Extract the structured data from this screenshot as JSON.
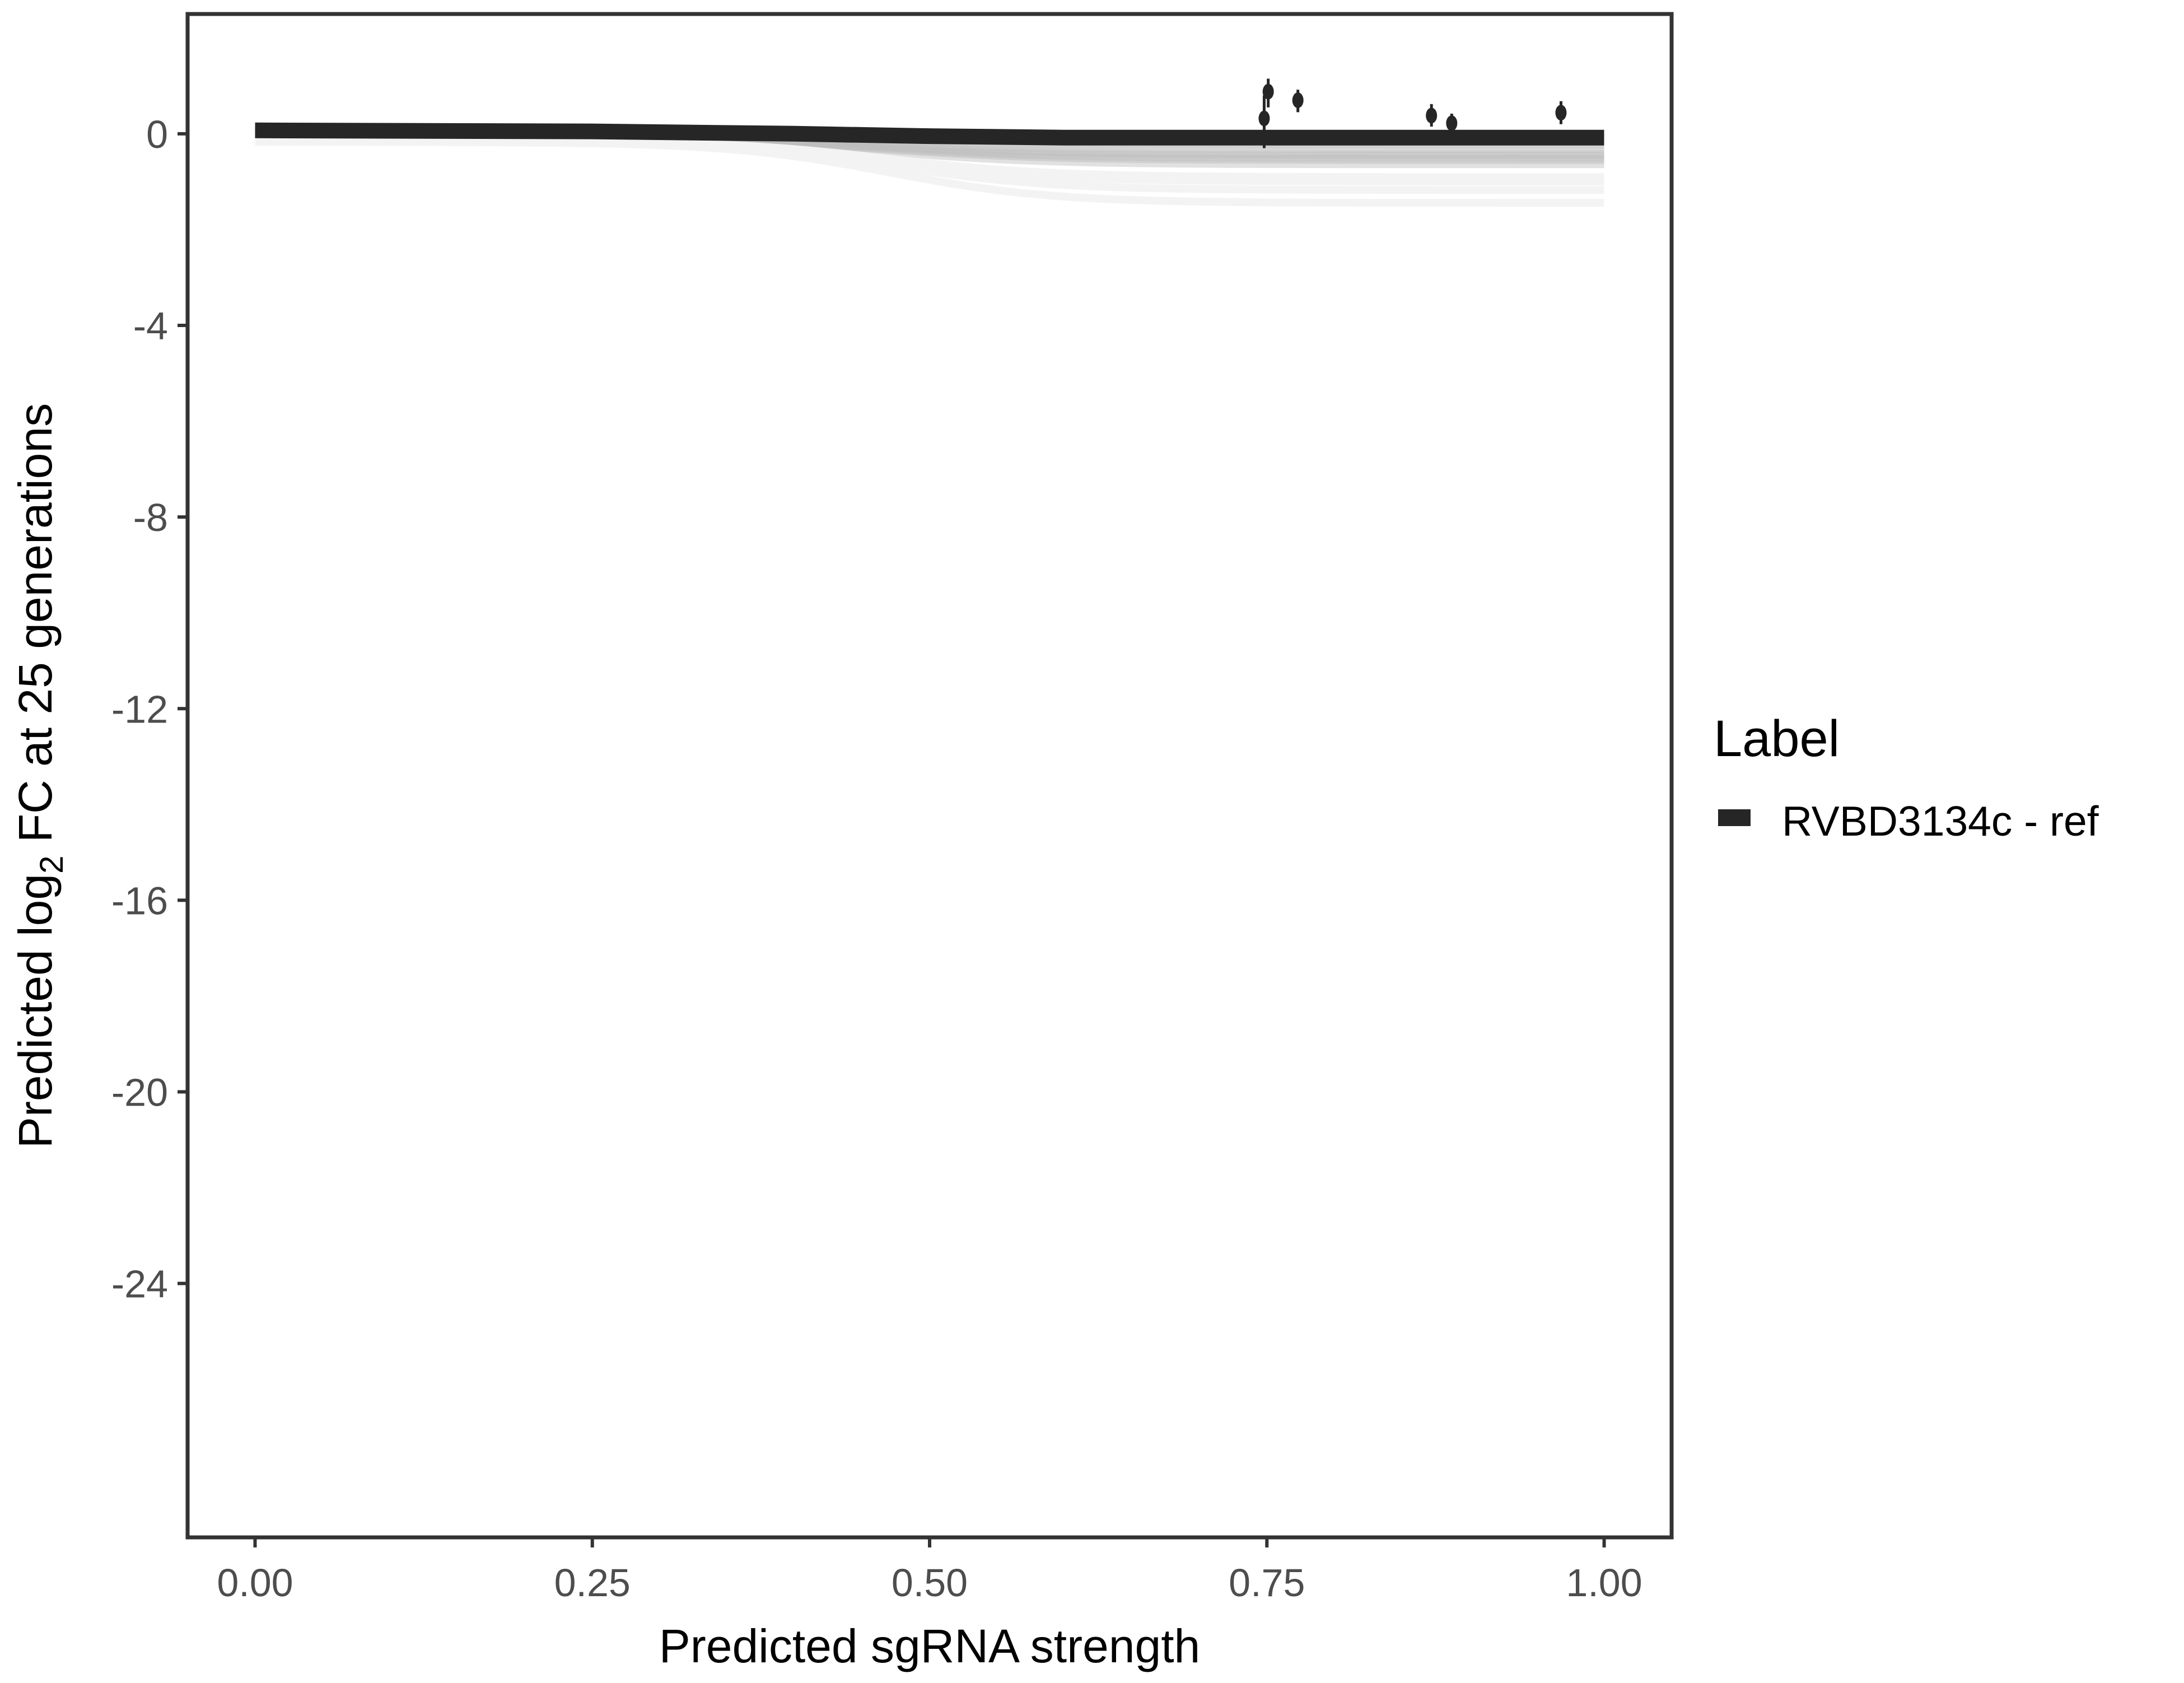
{
  "chart_data": {
    "type": "line",
    "xlabel": "Predicted sgRNA strength",
    "ylabel_parts": [
      "Predicted  log",
      "2",
      " FC at 25 generations"
    ],
    "xlim": [
      -0.05,
      1.05
    ],
    "ylim": [
      -29.3,
      2.5
    ],
    "x_ticks": [
      "0.00",
      "0.25",
      "0.50",
      "0.75",
      "1.00"
    ],
    "x_tick_values": [
      0,
      0.25,
      0.5,
      0.75,
      1
    ],
    "y_ticks": [
      "0",
      "-4",
      "-8",
      "-12",
      "-16",
      "-20",
      "-24"
    ],
    "y_tick_values": [
      0,
      -4,
      -8,
      -12,
      -16,
      -20,
      -24
    ],
    "grid": false,
    "legend": {
      "title": "Label",
      "entries": [
        "RVBD3134c - ref"
      ],
      "placement": "right"
    },
    "colors": {
      "main_line": "#262626",
      "posterior_lines": "#bdbdbd",
      "points": "#262626",
      "axis": "#333333"
    },
    "main_line": {
      "x": [
        0,
        0.25,
        0.4,
        0.5,
        0.6,
        0.75,
        1.0
      ],
      "y": [
        0.07,
        0.05,
        0.0,
        -0.05,
        -0.08,
        -0.08,
        -0.08
      ]
    },
    "posterior_final_values": [
      -0.15,
      -0.25,
      -0.35,
      -0.45,
      -0.5,
      -0.55,
      -0.6,
      -0.7,
      -1.0,
      -1.1,
      -1.3,
      -1.6
    ],
    "points": [
      {
        "x": 0.748,
        "y": 0.32,
        "lo": -0.3,
        "hi": 0.8
      },
      {
        "x": 0.751,
        "y": 0.88,
        "lo": 0.55,
        "hi": 1.15
      },
      {
        "x": 0.773,
        "y": 0.7,
        "lo": 0.45,
        "hi": 0.92
      },
      {
        "x": 0.872,
        "y": 0.38,
        "lo": 0.15,
        "hi": 0.62
      },
      {
        "x": 0.887,
        "y": 0.22,
        "lo": 0.0,
        "hi": 0.42
      },
      {
        "x": 0.968,
        "y": 0.44,
        "lo": 0.2,
        "hi": 0.68
      }
    ]
  }
}
